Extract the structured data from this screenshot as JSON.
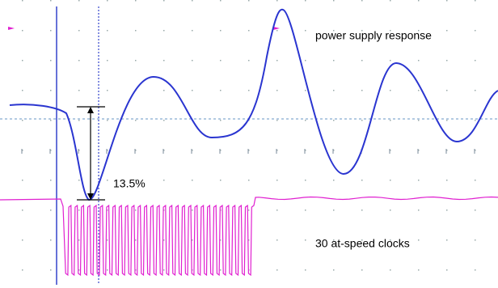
{
  "annotations": {
    "trace_label": "power supply response",
    "droop": "13.5%",
    "clock_label": "30 at-speed clocks"
  }
}
